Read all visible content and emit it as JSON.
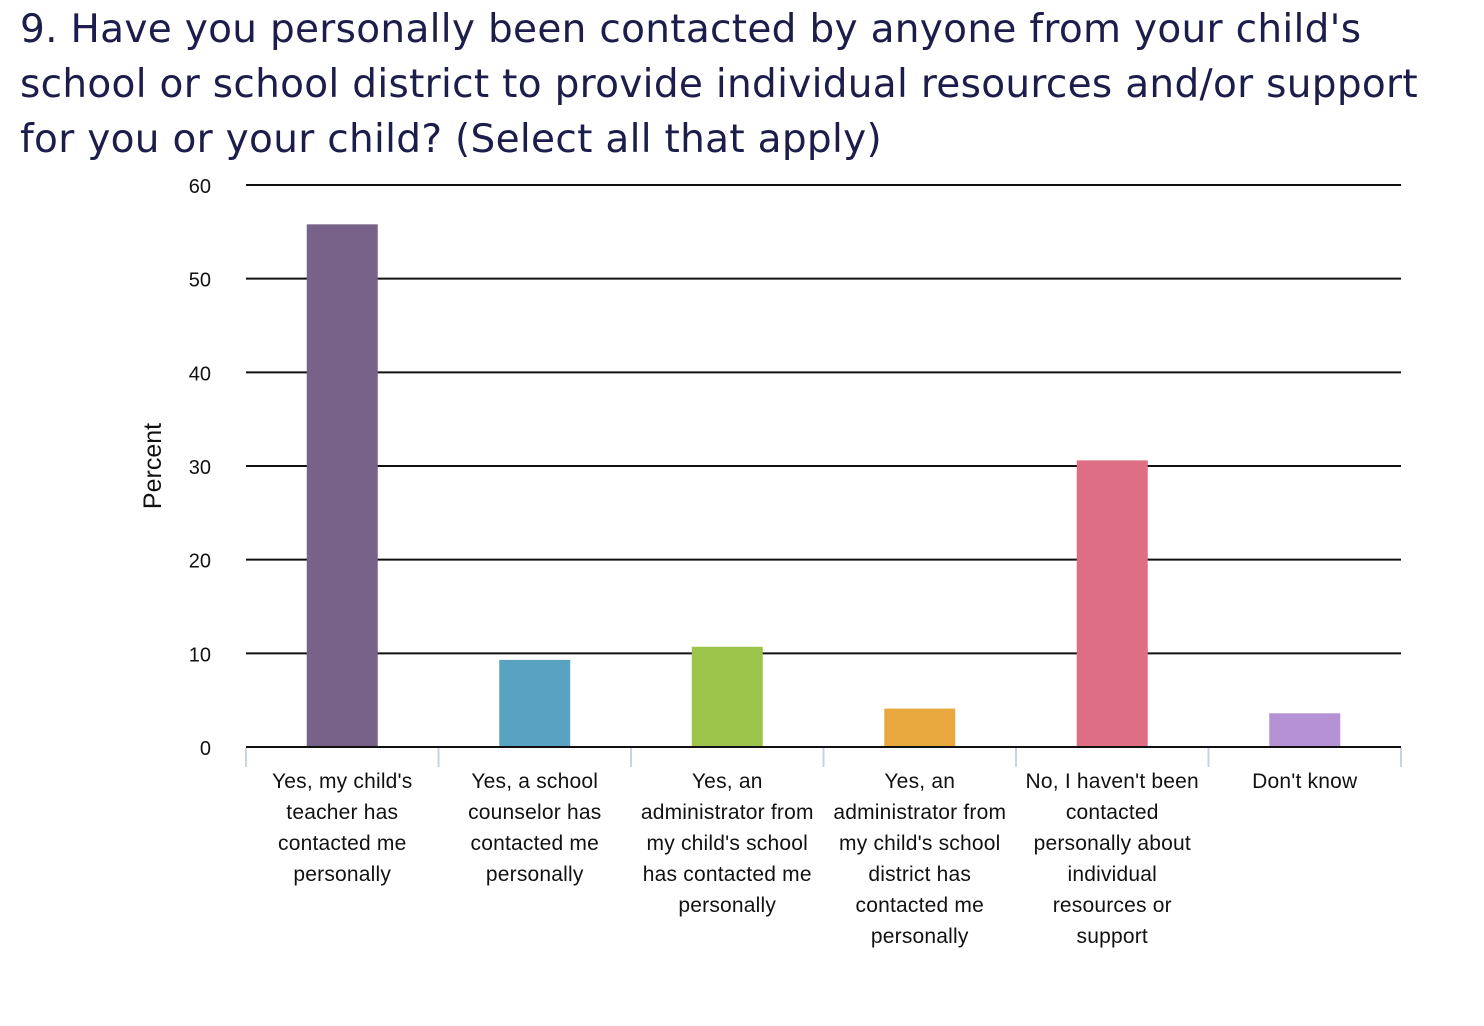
{
  "chart_data": {
    "type": "bar",
    "title": "9. Have you personally been contacted by anyone from your child's school or school district to provide individual resources and/or support for you or your child? (Select all that apply)",
    "xlabel": "",
    "ylabel": "Percent",
    "ylim": [
      0,
      60
    ],
    "yticks": [
      "0",
      "10",
      "20",
      "30",
      "40",
      "50",
      "60"
    ],
    "grid": true,
    "categories": [
      "Yes, my child's teacher has contacted me personally",
      "Yes, a school counselor has contacted me personally",
      "Yes, an administrator from my child's school has contacted me personally",
      "Yes, an administrator from my child's school district has contacted me personally",
      "No, I haven't been contacted personally about individual resources or support",
      "Don't know"
    ],
    "values": [
      55.8,
      9.3,
      10.7,
      4.1,
      30.6,
      3.6
    ],
    "colors": [
      "#77638a",
      "#5aa2c2",
      "#9cc44a",
      "#e8a83e",
      "#de6e84",
      "#b592d4"
    ]
  }
}
